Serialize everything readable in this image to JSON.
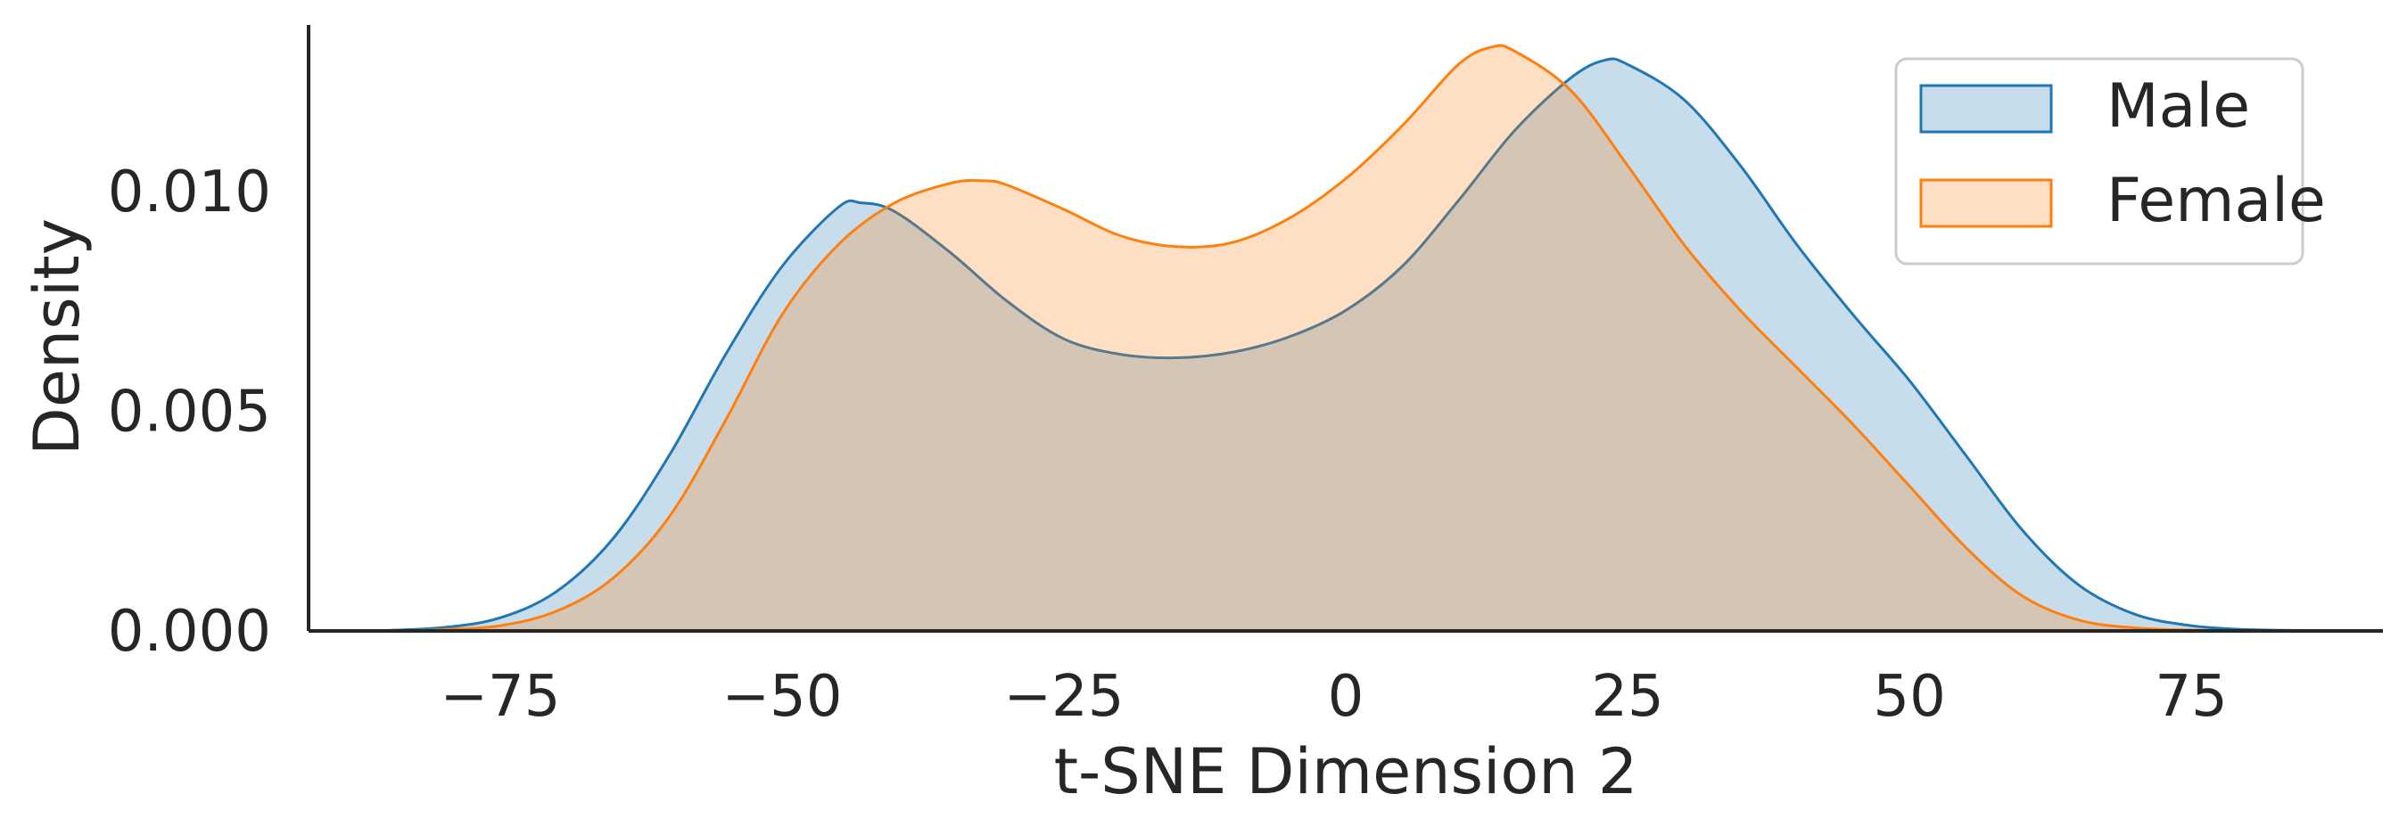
{
  "chart_data": {
    "type": "area",
    "title": "",
    "xlabel": "t-SNE Dimension 2",
    "ylabel": "Density",
    "xlim": [
      -92,
      92
    ],
    "ylim": [
      0,
      0.0138
    ],
    "xticks": [
      -75,
      -50,
      -25,
      0,
      25,
      50,
      75
    ],
    "xtick_labels": [
      "−75",
      "−50",
      "−25",
      "0",
      "25",
      "50",
      "75"
    ],
    "yticks": [
      0.0,
      0.005,
      0.01
    ],
    "ytick_labels": [
      "0.000",
      "0.005",
      "0.010"
    ],
    "grid": false,
    "legend": {
      "placement": "top-right",
      "entries": [
        "Male",
        "Female"
      ]
    },
    "series": [
      {
        "name": "Male",
        "color": "#1f77b4",
        "fill": "rgba(31,119,180,0.25)",
        "x": [
          -85,
          -80,
          -75,
          -70,
          -65,
          -60,
          -55,
          -50,
          -45,
          -43,
          -40,
          -35,
          -30,
          -25,
          -20,
          -15,
          -10,
          -5,
          0,
          5,
          10,
          15,
          20,
          23,
          25,
          30,
          35,
          40,
          45,
          50,
          55,
          60,
          65,
          70,
          75,
          80,
          85
        ],
        "y": [
          1e-05,
          8e-05,
          0.0003,
          0.0009,
          0.0021,
          0.004,
          0.0063,
          0.0083,
          0.00965,
          0.00975,
          0.00955,
          0.0086,
          0.0075,
          0.00665,
          0.0063,
          0.00622,
          0.00635,
          0.0067,
          0.0073,
          0.0083,
          0.0098,
          0.0114,
          0.0126,
          0.013,
          0.0129,
          0.0121,
          0.0106,
          0.0088,
          0.0072,
          0.0057,
          0.004,
          0.0023,
          0.00105,
          0.00038,
          0.00012,
          3e-05,
          1e-05
        ]
      },
      {
        "name": "Female",
        "color": "#ff7f0e",
        "fill": "rgba(255,127,14,0.25)",
        "x": [
          -85,
          -80,
          -75,
          -70,
          -65,
          -60,
          -55,
          -50,
          -45,
          -40,
          -35,
          -32,
          -30,
          -25,
          -20,
          -15,
          -10,
          -5,
          0,
          5,
          10,
          13,
          15,
          20,
          25,
          30,
          35,
          40,
          45,
          50,
          55,
          60,
          65,
          70,
          75,
          80,
          85
        ],
        "y": [
          0.0,
          3e-05,
          0.00012,
          0.00045,
          0.0012,
          0.0026,
          0.0048,
          0.0072,
          0.0088,
          0.00975,
          0.0102,
          0.01025,
          0.01015,
          0.0096,
          0.009,
          0.00875,
          0.00885,
          0.0094,
          0.0103,
          0.0115,
          0.0129,
          0.0133,
          0.0132,
          0.0123,
          0.0106,
          0.0088,
          0.0073,
          0.006,
          0.0047,
          0.0033,
          0.0019,
          0.0008,
          0.00025,
          7e-05,
          2e-05,
          0.0,
          0.0
        ]
      }
    ]
  }
}
